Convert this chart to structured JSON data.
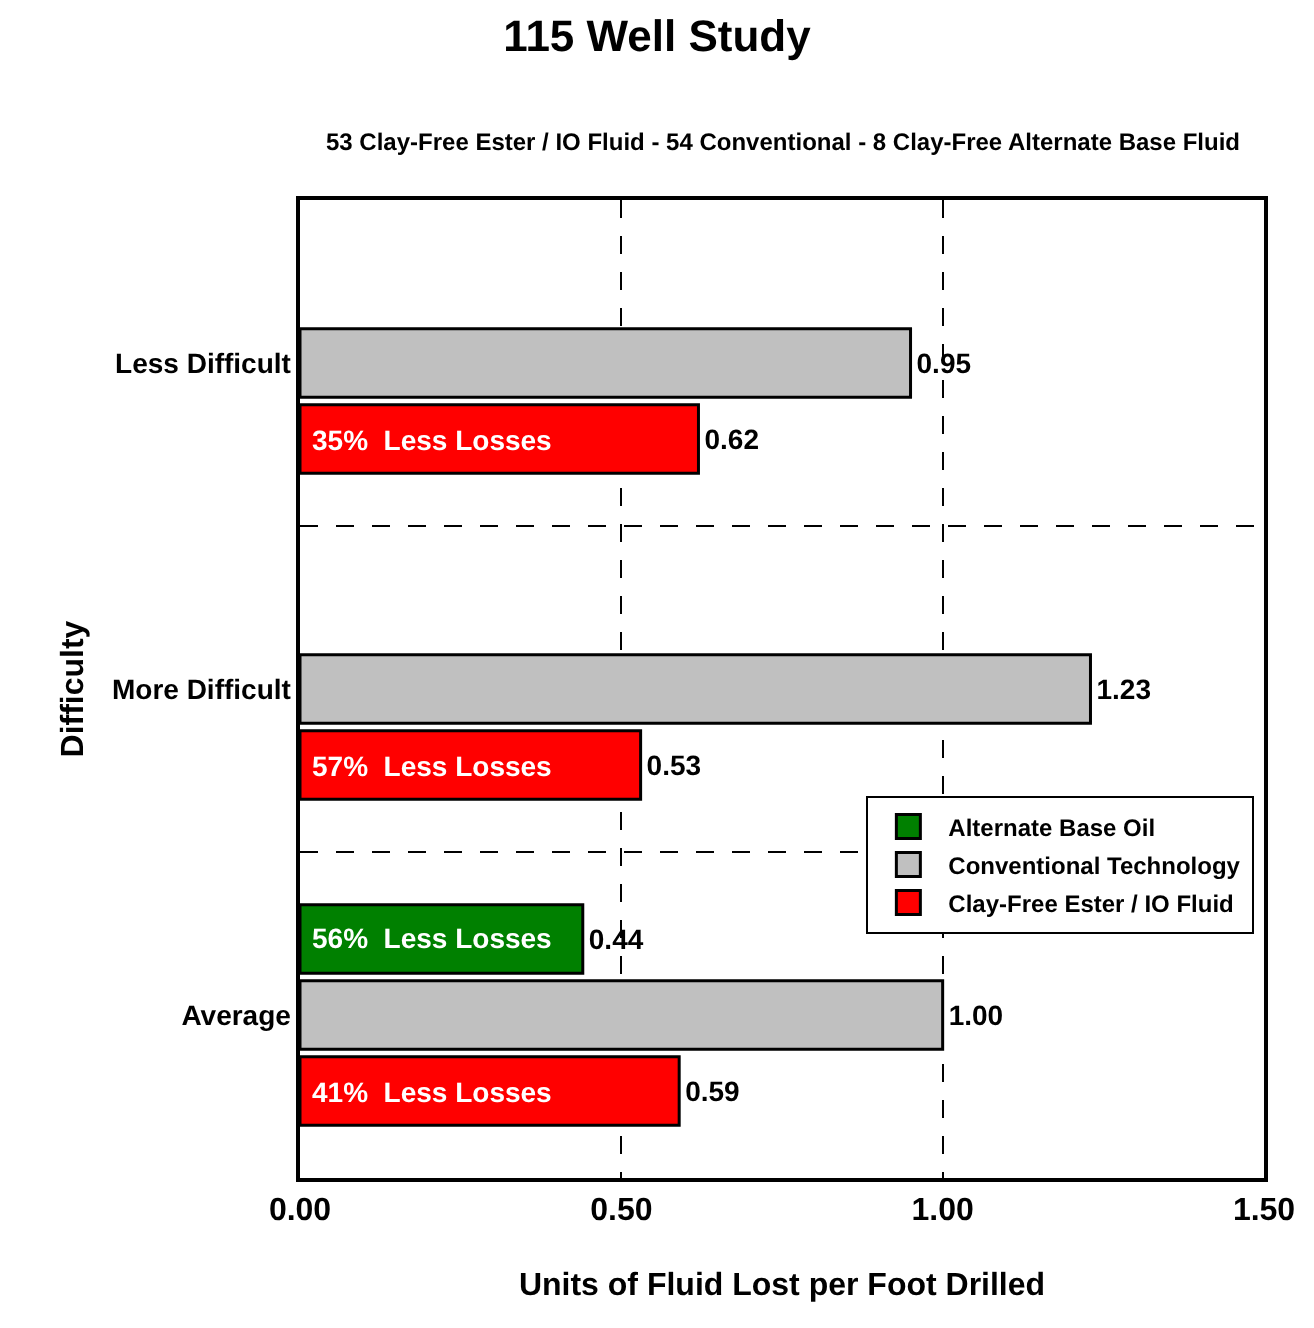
{
  "chart_data": {
    "type": "bar",
    "orientation": "horizontal",
    "title": "115 Well Study",
    "subtitle": "53 Clay-Free Ester / IO Fluid - 54 Conventional - 8 Clay-Free Alternate Base Fluid",
    "xlabel": "Units of Fluid Lost per Foot Drilled",
    "ylabel": "Difficulty",
    "categories": [
      "Less Difficult",
      "More Difficult",
      "Average"
    ],
    "series": [
      {
        "name": "Alternate Base Oil",
        "color": "#008000",
        "values": [
          null,
          null,
          0.44
        ],
        "value_labels": [
          null,
          null,
          "0.44"
        ]
      },
      {
        "name": "Conventional Technology",
        "color": "#c0c0c0",
        "values": [
          0.95,
          1.23,
          1.0
        ],
        "value_labels": [
          "0.95",
          "1.23",
          "1.00"
        ]
      },
      {
        "name": "Clay-Free Ester / IO Fluid",
        "color": "#ff0000",
        "values": [
          0.62,
          0.53,
          0.59
        ],
        "value_labels": [
          "0.62",
          "0.53",
          "0.59"
        ]
      }
    ],
    "annotations": [
      "35%  Less Losses",
      "57%  Less Losses",
      "56%  Less Losses",
      "41%  Less Losses"
    ],
    "xlim": [
      0,
      1.5
    ],
    "xticks": [
      {
        "value": 0,
        "label": "0.00"
      },
      {
        "value": 0.5,
        "label": "0.50"
      },
      {
        "value": 1,
        "label": "1.00"
      },
      {
        "value": 1.5,
        "label": "1.50"
      }
    ],
    "grid": true,
    "legend": "bottom right"
  }
}
